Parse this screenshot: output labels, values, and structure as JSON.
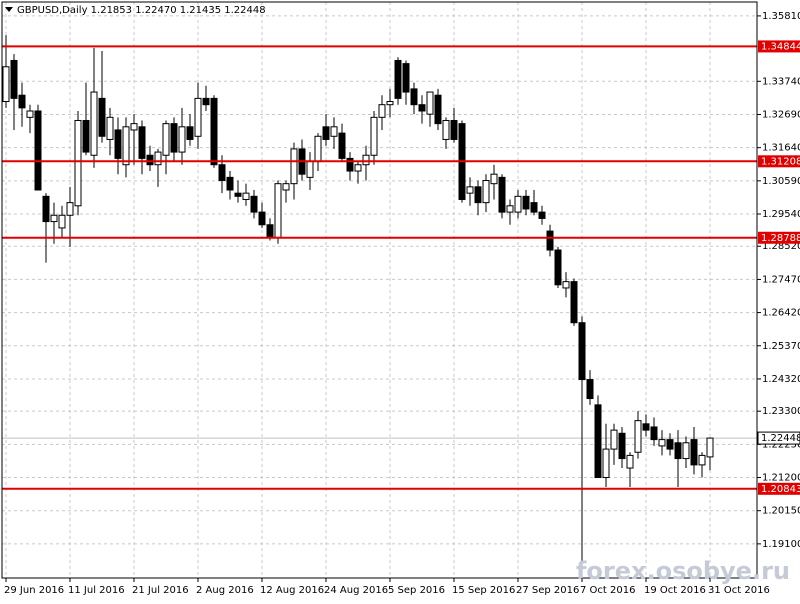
{
  "chart_data": {
    "type": "candlestick",
    "title": "GBPUSD,Daily  1.21853 1.22470 1.21435 1.22448",
    "watermark": "forex.osobye.ru",
    "categories": [
      "29 Jun 2016",
      null,
      null,
      null,
      null,
      null,
      null,
      null,
      "11 Jul 2016",
      null,
      null,
      null,
      null,
      null,
      null,
      null,
      "21 Jul 2016",
      null,
      null,
      null,
      null,
      null,
      null,
      null,
      "2 Aug 2016",
      null,
      null,
      null,
      null,
      null,
      null,
      null,
      "12 Aug 2016",
      null,
      null,
      null,
      null,
      null,
      null,
      null,
      "24 Aug 2016",
      null,
      null,
      null,
      null,
      null,
      null,
      null,
      "5 Sep 2016",
      null,
      null,
      null,
      null,
      null,
      null,
      null,
      "15 Sep 2016",
      null,
      null,
      null,
      null,
      null,
      null,
      null,
      "27 Sep 2016",
      null,
      null,
      null,
      null,
      null,
      null,
      null,
      "7 Oct 2016",
      null,
      null,
      null,
      null,
      null,
      null,
      null,
      "19 Oct 2016",
      null,
      null,
      null,
      null,
      null,
      null,
      null,
      "31 Oct 2016"
    ],
    "open": [
      1.331,
      1.344,
      1.333,
      1.326,
      1.328,
      1.301,
      1.293,
      1.291,
      1.295,
      1.298,
      1.325,
      1.314,
      1.332,
      1.319,
      1.322,
      1.311,
      1.322,
      1.323,
      1.314,
      1.311,
      1.314,
      1.324,
      1.315,
      1.323,
      1.32,
      1.332,
      1.332,
      1.311,
      1.307,
      1.302,
      1.3,
      1.301,
      1.296,
      1.292,
      1.288,
      1.303,
      1.305,
      1.316,
      1.307,
      1.312,
      1.323,
      1.32,
      1.321,
      1.313,
      1.309,
      1.311,
      1.314,
      1.326,
      1.33,
      1.344,
      1.343,
      1.335,
      1.33,
      1.327,
      1.333,
      1.319,
      1.325,
      1.324,
      1.302,
      1.304,
      1.299,
      1.305,
      1.307,
      1.296,
      1.296,
      1.301,
      1.299,
      1.296,
      1.29,
      1.284,
      1.272,
      1.274,
      1.261,
      1.243,
      1.235,
      1.212,
      1.221,
      1.226,
      1.215,
      1.22,
      1.229,
      1.228,
      1.222,
      1.224,
      1.223,
      1.218,
      1.224,
      1.216,
      1.21853
    ],
    "high": [
      1.352,
      1.346,
      1.337,
      1.33,
      1.33,
      1.302,
      1.299,
      1.298,
      1.304,
      1.328,
      1.337,
      1.348,
      1.347,
      1.329,
      1.326,
      1.326,
      1.327,
      1.325,
      1.317,
      1.316,
      1.325,
      1.326,
      1.329,
      1.327,
      1.337,
      1.336,
      1.333,
      1.314,
      1.309,
      1.306,
      1.305,
      1.303,
      1.299,
      1.294,
      1.306,
      1.306,
      1.318,
      1.319,
      1.315,
      1.321,
      1.327,
      1.326,
      1.324,
      1.315,
      1.312,
      1.317,
      1.328,
      1.333,
      1.335,
      1.345,
      1.344,
      1.337,
      1.333,
      1.334,
      1.335,
      1.326,
      1.329,
      1.325,
      1.307,
      1.306,
      1.308,
      1.311,
      1.308,
      1.3,
      1.303,
      1.303,
      1.303,
      1.298,
      1.292,
      1.285,
      1.277,
      1.275,
      1.263,
      1.246,
      1.238,
      1.229,
      1.229,
      1.228,
      1.22,
      1.233,
      1.232,
      1.231,
      1.227,
      1.226,
      1.227,
      1.225,
      1.228,
      1.22,
      1.2247
    ],
    "low": [
      1.329,
      1.322,
      1.323,
      1.321,
      1.303,
      1.28,
      1.286,
      1.288,
      1.285,
      1.295,
      1.314,
      1.31,
      1.318,
      1.314,
      1.308,
      1.307,
      1.311,
      1.308,
      1.309,
      1.304,
      1.308,
      1.312,
      1.311,
      1.317,
      1.316,
      1.328,
      1.31,
      1.302,
      1.3,
      1.299,
      1.298,
      1.294,
      1.291,
      1.287,
      1.286,
      1.299,
      1.3,
      1.306,
      1.303,
      1.309,
      1.317,
      1.316,
      1.312,
      1.306,
      1.305,
      1.306,
      1.311,
      1.322,
      1.326,
      1.33,
      1.33,
      1.327,
      1.324,
      1.323,
      1.322,
      1.316,
      1.318,
      1.299,
      1.298,
      1.295,
      1.296,
      1.3,
      1.294,
      1.292,
      1.294,
      1.295,
      1.295,
      1.292,
      1.282,
      1.272,
      1.269,
      1.26,
      1.184,
      1.235,
      1.212,
      1.209,
      1.216,
      1.215,
      1.209,
      1.218,
      1.225,
      1.222,
      1.219,
      1.219,
      1.209,
      1.215,
      1.213,
      1.212,
      1.21435
    ],
    "close": [
      1.342,
      1.332,
      1.329,
      1.328,
      1.303,
      1.293,
      1.295,
      1.295,
      1.299,
      1.325,
      1.315,
      1.334,
      1.32,
      1.326,
      1.313,
      1.323,
      1.324,
      1.313,
      1.311,
      1.315,
      1.324,
      1.315,
      1.323,
      1.319,
      1.332,
      1.33,
      1.311,
      1.306,
      1.303,
      1.301,
      1.302,
      1.296,
      1.292,
      1.288,
      1.305,
      1.305,
      1.316,
      1.308,
      1.312,
      1.32,
      1.319,
      1.323,
      1.313,
      1.309,
      1.311,
      1.314,
      1.326,
      1.33,
      1.331,
      1.332,
      1.334,
      1.33,
      1.328,
      1.334,
      1.324,
      1.325,
      1.319,
      1.3,
      1.304,
      1.299,
      1.306,
      1.308,
      1.296,
      1.298,
      1.301,
      1.297,
      1.296,
      1.294,
      1.284,
      1.273,
      1.274,
      1.261,
      1.243,
      1.237,
      1.212,
      1.221,
      1.227,
      1.218,
      1.219,
      1.23,
      1.227,
      1.224,
      1.224,
      1.221,
      1.218,
      1.223,
      1.216,
      1.219,
      1.22448
    ],
    "up_color": "#ffffff",
    "down_color": "#000000",
    "ylim": [
      1.1802,
      1.3625
    ],
    "yticks": [
      {
        "value": 1.3581,
        "label": "1.35810"
      },
      {
        "value": 1.3374,
        "label": "1.33740"
      },
      {
        "value": 1.3269,
        "label": "1.32690"
      },
      {
        "value": 1.3164,
        "label": "1.31640"
      },
      {
        "value": 1.3059,
        "label": "1.30590"
      },
      {
        "value": 1.2954,
        "label": "1.29540"
      },
      {
        "value": 1.2852,
        "label": "1.28520"
      },
      {
        "value": 1.2747,
        "label": "1.27470"
      },
      {
        "value": 1.2642,
        "label": "1.26420"
      },
      {
        "value": 1.2537,
        "label": "1.25370"
      },
      {
        "value": 1.2432,
        "label": "1.24320"
      },
      {
        "value": 1.233,
        "label": "1.23300"
      },
      {
        "value": 1.2225,
        "label": "1.22250"
      },
      {
        "value": 1.212,
        "label": "1.21200"
      },
      {
        "value": 1.2015,
        "label": "1.20150"
      },
      {
        "value": 1.191,
        "label": "1.19100"
      }
    ],
    "grid": true,
    "hlines": [
      1.34844,
      1.31208,
      1.28788,
      1.20843
    ],
    "hline_color": "#e00000",
    "current_price": 1.22448
  }
}
